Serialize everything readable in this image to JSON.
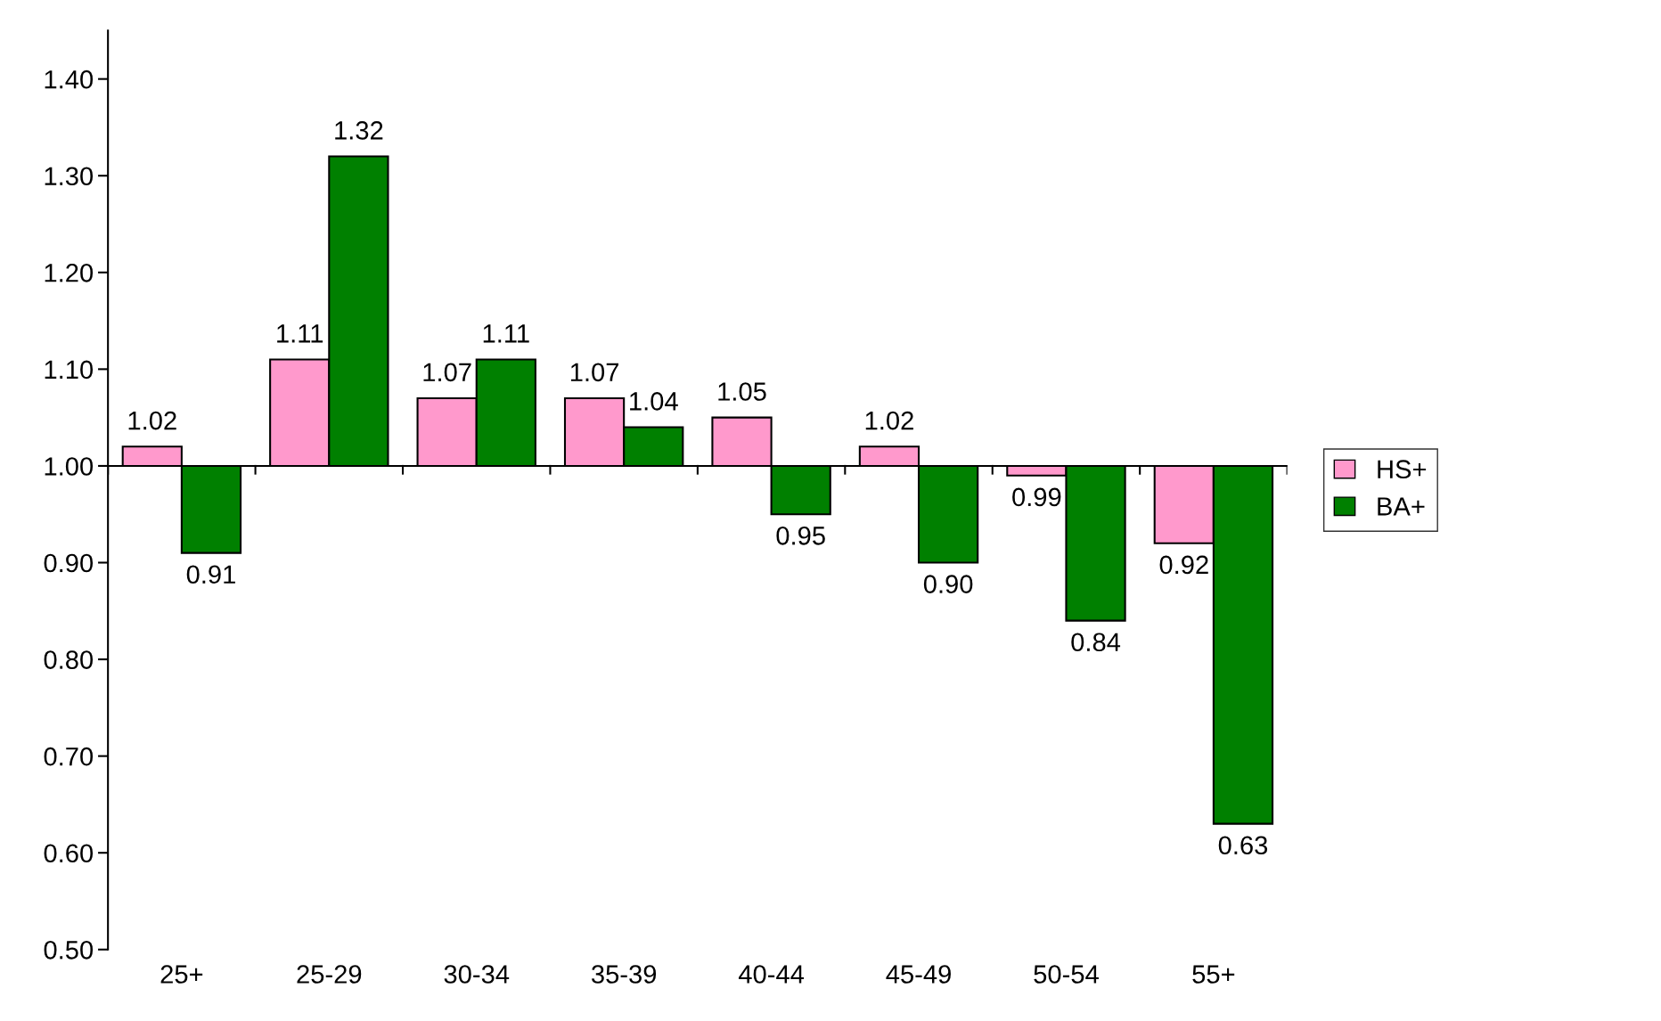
{
  "chart_data": {
    "type": "bar",
    "categories": [
      "25+",
      "25-29",
      "30-34",
      "35-39",
      "40-44",
      "45-49",
      "50-54",
      "55+"
    ],
    "series": [
      {
        "name": "HS+",
        "color": "#ff99cc",
        "base": [
          1,
          1,
          1,
          1,
          1,
          1,
          1,
          1
        ],
        "values": [
          0.02,
          0.11,
          0.07,
          0.07,
          0.05,
          0.02,
          -0.01,
          -0.08
        ],
        "value_labels": [
          "1.02",
          "1.11",
          "1.07",
          "1.07",
          "1.05",
          "1.02",
          "0.99",
          "0.92"
        ]
      },
      {
        "name": "BA+",
        "color": "#008000",
        "base": [
          1,
          1,
          1,
          1,
          1,
          1,
          1,
          1
        ],
        "values": [
          -0.09,
          0.32,
          0.11,
          0.04,
          -0.05,
          -0.1,
          -0.16,
          -0.37
        ],
        "value_labels": [
          "0.91",
          "1.32",
          "1.11",
          "1.04",
          "0.95",
          "0.90",
          "0.84",
          "0.63"
        ]
      }
    ],
    "ylim": [
      0.5,
      1.45
    ],
    "yticks": [
      {
        "value": 0.5,
        "label": "0.50"
      },
      {
        "value": 0.6,
        "label": "0.60"
      },
      {
        "value": 0.7,
        "label": "0.70"
      },
      {
        "value": 0.8,
        "label": "0.80"
      },
      {
        "value": 0.9,
        "label": "0.90"
      },
      {
        "value": 1.0,
        "label": "1.00"
      },
      {
        "value": 1.1,
        "label": "1.10"
      },
      {
        "value": 1.2,
        "label": "1.20"
      },
      {
        "value": 1.3,
        "label": "1.30"
      },
      {
        "value": 1.4,
        "label": "1.40"
      }
    ],
    "ref_lines": [
      {
        "axis": "y",
        "value": 1.0,
        "color": "#000000"
      }
    ],
    "legend": "right",
    "grid": false
  }
}
